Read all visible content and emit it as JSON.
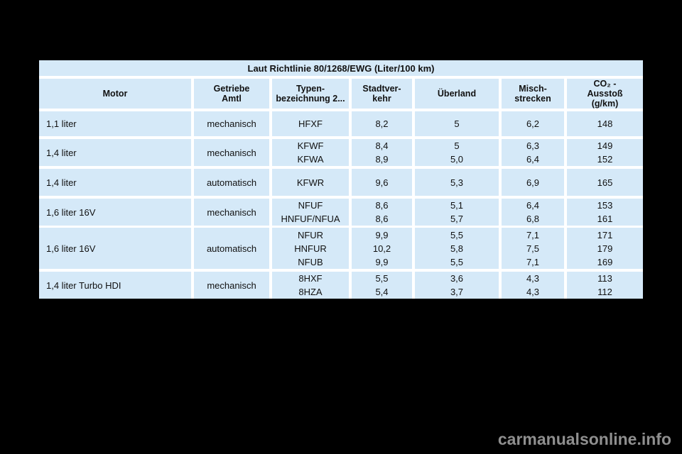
{
  "table": {
    "title": "Laut Richtlinie 80/1268/EWG (Liter/100 km)",
    "headers": [
      "Motor",
      "Getriebe\nAmtl",
      "Typen-\nbezeichnung 2...",
      "Stadtver-\nkehr",
      "Überland",
      "Misch-\nstrecken",
      "CO₂ -\nAusstoß\n(g/km)"
    ],
    "rows": [
      {
        "motor": "1,1 liter",
        "getriebe": "mechanisch",
        "variants": [
          {
            "typ": "HFXF",
            "stadtverkehr": "8,2",
            "ueberland": "5",
            "mischstrecken": "6,2",
            "co2": "148"
          }
        ]
      },
      {
        "motor": "1,4 liter",
        "getriebe": "mechanisch",
        "variants": [
          {
            "typ": "KFWF",
            "stadtverkehr": "8,4",
            "ueberland": "5",
            "mischstrecken": "6,3",
            "co2": "149"
          },
          {
            "typ": "KFWA",
            "stadtverkehr": "8,9",
            "ueberland": "5,0",
            "mischstrecken": "6,4",
            "co2": "152"
          }
        ]
      },
      {
        "motor": "1,4 liter",
        "getriebe": "automatisch",
        "variants": [
          {
            "typ": "KFWR",
            "stadtverkehr": "9,6",
            "ueberland": "5,3",
            "mischstrecken": "6,9",
            "co2": "165"
          }
        ]
      },
      {
        "motor": "1,6 liter 16V",
        "getriebe": "mechanisch",
        "variants": [
          {
            "typ": "NFUF",
            "stadtverkehr": "8,6",
            "ueberland": "5,1",
            "mischstrecken": "6,4",
            "co2": "153"
          },
          {
            "typ": "HNFUF/NFUA",
            "stadtverkehr": "8,6",
            "ueberland": "5,7",
            "mischstrecken": "6,8",
            "co2": "161"
          }
        ]
      },
      {
        "motor": "1,6 liter 16V",
        "getriebe": "automatisch",
        "variants": [
          {
            "typ": "NFUR",
            "stadtverkehr": "9,9",
            "ueberland": "5,5",
            "mischstrecken": "7,1",
            "co2": "171"
          },
          {
            "typ": "HNFUR",
            "stadtverkehr": "10,2",
            "ueberland": "5,8",
            "mischstrecken": "7,5",
            "co2": "179"
          },
          {
            "typ": "NFUB",
            "stadtverkehr": "9,9",
            "ueberland": "5,5",
            "mischstrecken": "7,1",
            "co2": "169"
          }
        ]
      },
      {
        "motor": "1,4 liter Turbo HDI",
        "getriebe": "mechanisch",
        "variants": [
          {
            "typ": "8HXF",
            "stadtverkehr": "5,5",
            "ueberland": "3,6",
            "mischstrecken": "4,3",
            "co2": "113"
          },
          {
            "typ": "8HZA",
            "stadtverkehr": "5,4",
            "ueberland": "3,7",
            "mischstrecken": "4,3",
            "co2": "112"
          }
        ]
      }
    ]
  },
  "watermark": {
    "text": "carmanualsonline.info"
  },
  "colors": {
    "page_background": "#000000",
    "cell_fill": "#d5e9f8",
    "gridline": "#ffffff",
    "text": "#111111",
    "watermark": "#8f8f8f"
  }
}
